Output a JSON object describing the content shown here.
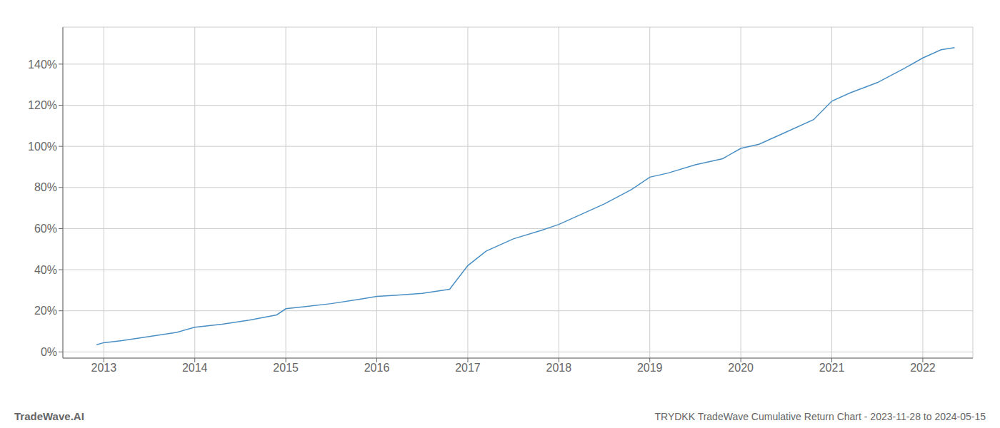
{
  "chart_data": {
    "type": "line",
    "title": "TRYDKK TradeWave Cumulative Return Chart - 2023-11-28 to 2024-05-15",
    "annotations": [
      "TradeWave.AI"
    ],
    "color": "#4a8fc4",
    "grid": true,
    "xlim": [
      2012.55,
      2022.55
    ],
    "ylim": [
      -3,
      158
    ],
    "xticks": [
      2013,
      2014,
      2015,
      2016,
      2017,
      2018,
      2019,
      2020,
      2021,
      2022
    ],
    "yticks": [
      {
        "value": 0,
        "label": "0%"
      },
      {
        "value": 20,
        "label": "20%"
      },
      {
        "value": 40,
        "label": "40%"
      },
      {
        "value": 60,
        "label": "60%"
      },
      {
        "value": 80,
        "label": "80%"
      },
      {
        "value": 100,
        "label": "100%"
      },
      {
        "value": 120,
        "label": "120%"
      },
      {
        "value": 140,
        "label": "140%"
      }
    ],
    "x": [
      2012.92,
      2013.0,
      2013.2,
      2013.5,
      2013.8,
      2014.0,
      2014.3,
      2014.6,
      2014.9,
      2015.0,
      2015.2,
      2015.5,
      2015.8,
      2016.0,
      2016.2,
      2016.5,
      2016.8,
      2017.0,
      2017.2,
      2017.5,
      2017.8,
      2018.0,
      2018.2,
      2018.5,
      2018.8,
      2019.0,
      2019.2,
      2019.5,
      2019.8,
      2020.0,
      2020.2,
      2020.5,
      2020.8,
      2021.0,
      2021.2,
      2021.5,
      2021.8,
      2022.0,
      2022.2,
      2022.35
    ],
    "values": [
      3.5,
      4.5,
      5.5,
      7.5,
      9.5,
      12,
      13.5,
      15.5,
      18,
      21,
      22,
      23.5,
      25.5,
      27,
      27.5,
      28.5,
      30.5,
      42,
      49,
      55,
      59,
      62,
      66,
      72,
      79,
      85,
      87,
      91,
      94,
      99,
      101,
      107,
      113,
      122,
      126,
      131,
      138,
      143,
      147,
      148
    ]
  }
}
